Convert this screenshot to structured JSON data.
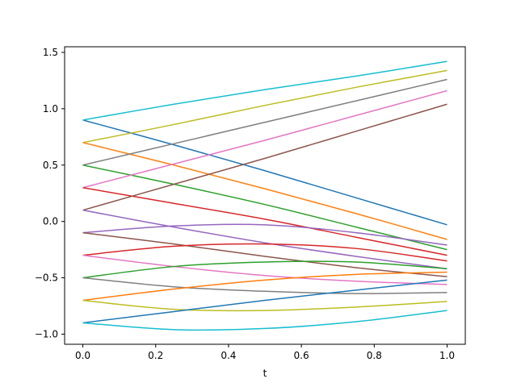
{
  "chart_data": {
    "type": "line",
    "title": "",
    "xlabel": "t",
    "ylabel": "",
    "xlim": [
      -0.05,
      1.05
    ],
    "ylim": [
      -1.09,
      1.55
    ],
    "xticks": [
      0.0,
      0.2,
      0.4,
      0.6,
      0.8,
      1.0
    ],
    "xtick_labels": [
      "0.0",
      "0.2",
      "0.4",
      "0.6",
      "0.8",
      "1.0"
    ],
    "yticks": [
      -1.0,
      -0.5,
      0.0,
      0.5,
      1.0,
      1.5
    ],
    "ytick_labels": [
      "−1.0",
      "−0.5",
      "0.0",
      "0.5",
      "1.0",
      "1.5"
    ],
    "grid": false,
    "legend": "none",
    "series": [
      {
        "color": "#1f77b4",
        "x": [
          0,
          0.25,
          0.5,
          0.75,
          1.0
        ],
        "y": [
          0.9,
          0.68,
          0.45,
          0.21,
          -0.03
        ]
      },
      {
        "color": "#17becf",
        "x": [
          0,
          0.25,
          0.5,
          0.75,
          1.0
        ],
        "y": [
          0.9,
          1.04,
          1.17,
          1.29,
          1.42
        ]
      },
      {
        "color": "#bcbd22",
        "x": [
          0,
          0.25,
          0.5,
          0.75,
          1.0
        ],
        "y": [
          0.7,
          0.86,
          1.03,
          1.19,
          1.34
        ]
      },
      {
        "color": "#ff7f0e",
        "x": [
          0,
          0.25,
          0.5,
          0.75,
          1.0
        ],
        "y": [
          0.7,
          0.5,
          0.29,
          0.07,
          -0.16
        ]
      },
      {
        "color": "#7f7f7f",
        "x": [
          0,
          0.25,
          0.5,
          0.75,
          1.0
        ],
        "y": [
          0.5,
          0.69,
          0.88,
          1.07,
          1.26
        ]
      },
      {
        "color": "#2ca02c",
        "x": [
          0,
          0.25,
          0.5,
          0.75,
          1.0
        ],
        "y": [
          0.5,
          0.33,
          0.15,
          -0.05,
          -0.25
        ]
      },
      {
        "color": "#e377c2",
        "x": [
          0,
          0.25,
          0.5,
          0.75,
          1.0
        ],
        "y": [
          0.3,
          0.51,
          0.72,
          0.94,
          1.16
        ]
      },
      {
        "color": "#d62728",
        "x": [
          0,
          0.25,
          0.5,
          0.75,
          1.0
        ],
        "y": [
          0.3,
          0.16,
          0.02,
          -0.14,
          -0.3
        ]
      },
      {
        "color": "#8c564b",
        "x": [
          0,
          0.25,
          0.5,
          0.75,
          1.0
        ],
        "y": [
          0.1,
          0.33,
          0.56,
          0.8,
          1.04
        ]
      },
      {
        "color": "#9467bd",
        "x": [
          0,
          0.25,
          0.5,
          0.75,
          1.0
        ],
        "y": [
          0.1,
          -0.05,
          -0.19,
          -0.31,
          -0.42
        ]
      },
      {
        "color": "#9467bd",
        "x": [
          0,
          0.25,
          0.5,
          0.75,
          1.0
        ],
        "y": [
          -0.1,
          -0.04,
          -0.03,
          -0.1,
          -0.21
        ]
      },
      {
        "color": "#8c564b",
        "x": [
          0,
          0.25,
          0.5,
          0.75,
          1.0
        ],
        "y": [
          -0.1,
          -0.2,
          -0.31,
          -0.41,
          -0.49
        ]
      },
      {
        "color": "#d62728",
        "x": [
          0,
          0.25,
          0.5,
          0.75,
          1.0
        ],
        "y": [
          -0.3,
          -0.22,
          -0.2,
          -0.24,
          -0.35
        ]
      },
      {
        "color": "#e377c2",
        "x": [
          0,
          0.25,
          0.5,
          0.75,
          1.0
        ],
        "y": [
          -0.3,
          -0.4,
          -0.48,
          -0.53,
          -0.56
        ]
      },
      {
        "color": "#2ca02c",
        "x": [
          0,
          0.25,
          0.5,
          0.75,
          1.0
        ],
        "y": [
          -0.5,
          -0.4,
          -0.36,
          -0.36,
          -0.42
        ]
      },
      {
        "color": "#7f7f7f",
        "x": [
          0,
          0.25,
          0.5,
          0.75,
          1.0
        ],
        "y": [
          -0.5,
          -0.58,
          -0.62,
          -0.64,
          -0.63
        ]
      },
      {
        "color": "#ff7f0e",
        "x": [
          0,
          0.25,
          0.5,
          0.75,
          1.0
        ],
        "y": [
          -0.7,
          -0.6,
          -0.52,
          -0.47,
          -0.45
        ]
      },
      {
        "color": "#bcbd22",
        "x": [
          0,
          0.25,
          0.5,
          0.75,
          1.0
        ],
        "y": [
          -0.7,
          -0.78,
          -0.79,
          -0.76,
          -0.71
        ]
      },
      {
        "color": "#1f77b4",
        "x": [
          0,
          0.25,
          0.5,
          0.75,
          1.0
        ],
        "y": [
          -0.9,
          -0.8,
          -0.7,
          -0.61,
          -0.52
        ]
      },
      {
        "color": "#17becf",
        "x": [
          0,
          0.25,
          0.5,
          0.75,
          1.0
        ],
        "y": [
          -0.9,
          -0.96,
          -0.95,
          -0.89,
          -0.79
        ]
      }
    ]
  }
}
